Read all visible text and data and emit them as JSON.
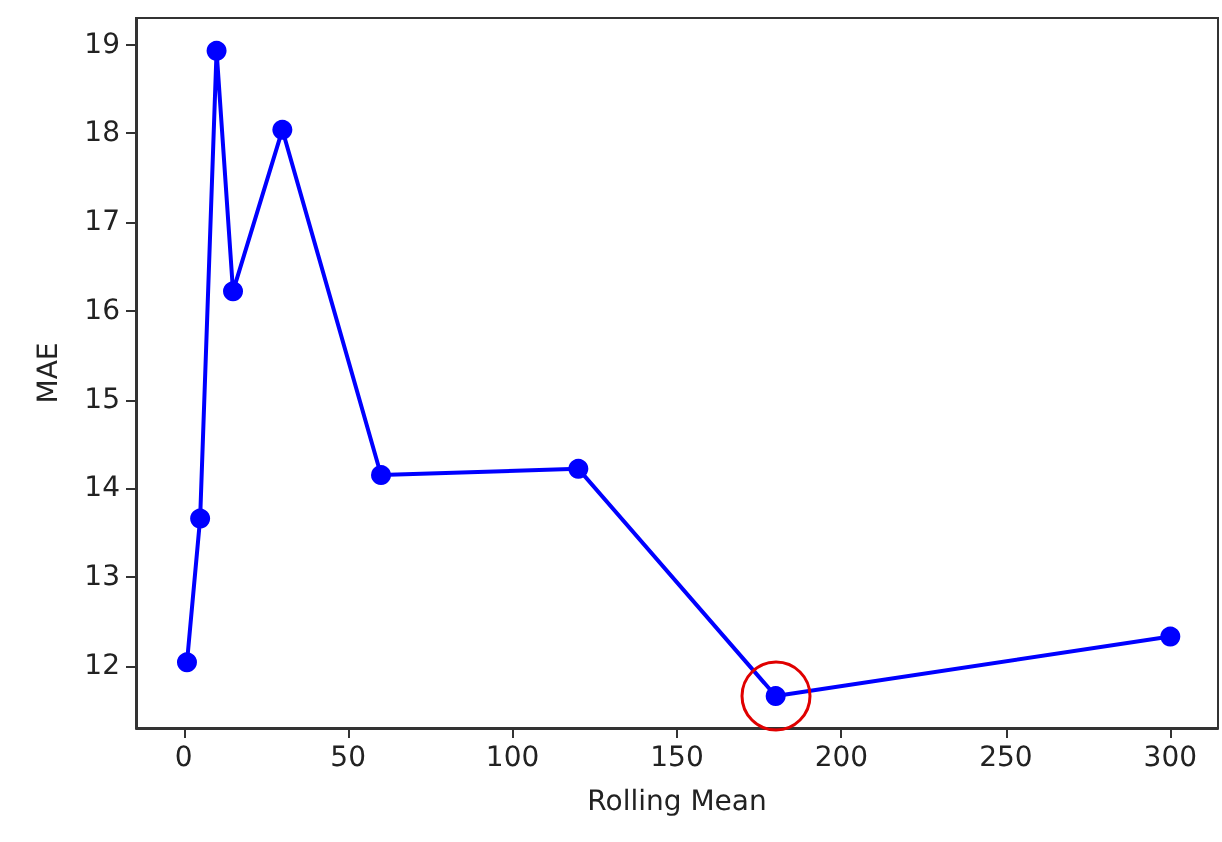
{
  "chart_data": {
    "type": "line",
    "xlabel": "Rolling Mean",
    "ylabel": "MAE",
    "x": [
      1,
      5,
      10,
      15,
      30,
      60,
      120,
      180,
      300
    ],
    "series": [
      {
        "color": "#0000ff",
        "values": [
          12.04,
          13.66,
          18.93,
          16.22,
          18.04,
          14.15,
          14.22,
          11.66,
          12.33
        ]
      }
    ],
    "xlim": [
      -14.5,
      314.5
    ],
    "xticks": [
      0,
      50,
      100,
      150,
      200,
      250,
      300
    ],
    "ylim": [
      11.3,
      19.3
    ],
    "yticks": [
      12,
      13,
      14,
      15,
      16,
      17,
      18,
      19
    ],
    "grid": false,
    "marker": "circle",
    "line_style": "solid"
  }
}
